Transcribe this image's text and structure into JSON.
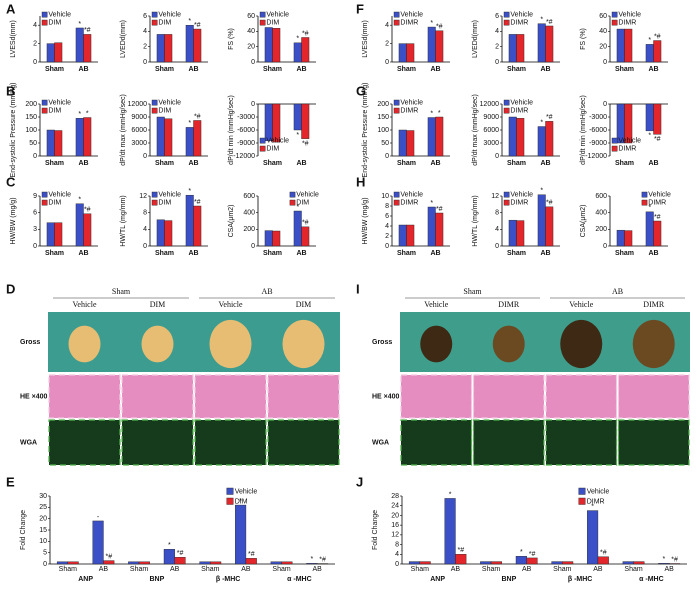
{
  "figure": {
    "panel_labels": [
      "A",
      "B",
      "C",
      "D",
      "E",
      "F",
      "G",
      "H",
      "I",
      "J"
    ],
    "image_panels": [
      {
        "groups": [
          "Sham",
          "AB"
        ],
        "columns": [
          "Vehicle",
          "DIM",
          "Vehicle",
          "DIM"
        ],
        "rows": [
          "Gross",
          "HE ×400",
          "WGA"
        ]
      },
      {
        "groups": [
          "Sham",
          "AB"
        ],
        "columns": [
          "Vehicle",
          "DIMR",
          "Vehicle",
          "DIMR"
        ],
        "rows": [
          "Gross",
          "HE ×400",
          "WGA"
        ]
      }
    ]
  },
  "chart_data": [
    {
      "type": "bar",
      "ylabel": "LVESd(mm)",
      "categories": [
        "Sham",
        "AB"
      ],
      "legend": "upper left",
      "ylim": [
        0,
        5
      ],
      "yticks": [
        0,
        2,
        4
      ],
      "series": [
        {
          "name": "Vehicle",
          "color": "#3b4fc6",
          "values": [
            2.0,
            3.7
          ],
          "significance": [
            null,
            "*"
          ]
        },
        {
          "name": "DIM",
          "color": "#e3262b",
          "values": [
            2.1,
            3.0
          ],
          "significance": [
            null,
            "*#"
          ]
        }
      ]
    },
    {
      "type": "bar",
      "ylabel": "LVEDd(mm)",
      "categories": [
        "Sham",
        "AB"
      ],
      "legend": "upper left",
      "ylim": [
        0,
        6
      ],
      "yticks": [
        0,
        2,
        4,
        6
      ],
      "series": [
        {
          "name": "Vehicle",
          "color": "#3b4fc6",
          "values": [
            3.6,
            4.8
          ],
          "significance": [
            null,
            "*"
          ]
        },
        {
          "name": "DIM",
          "color": "#e3262b",
          "values": [
            3.6,
            4.3
          ],
          "significance": [
            null,
            "*#"
          ]
        }
      ]
    },
    {
      "type": "bar",
      "ylabel": "FS (%)",
      "categories": [
        "Sham",
        "AB"
      ],
      "legend": "upper left",
      "ylim": [
        0,
        60
      ],
      "yticks": [
        0,
        20,
        40,
        60
      ],
      "series": [
        {
          "name": "Vehicle",
          "color": "#3b4fc6",
          "values": [
            45,
            25
          ],
          "significance": [
            null,
            "*"
          ]
        },
        {
          "name": "DIM",
          "color": "#e3262b",
          "values": [
            44,
            32
          ],
          "significance": [
            null,
            "*#"
          ]
        }
      ]
    },
    {
      "type": "bar",
      "ylabel": "End-systolic Pressure (mmHg)",
      "categories": [
        "Sham",
        "AB"
      ],
      "legend": "upper left",
      "ylim": [
        0,
        200
      ],
      "yticks": [
        0,
        50,
        100,
        150,
        200
      ],
      "series": [
        {
          "name": "Vehicle",
          "color": "#3b4fc6",
          "values": [
            100,
            145
          ],
          "significance": [
            null,
            "*"
          ]
        },
        {
          "name": "DIM",
          "color": "#e3262b",
          "values": [
            98,
            148
          ],
          "significance": [
            null,
            "*"
          ]
        }
      ]
    },
    {
      "type": "bar",
      "ylabel": "dP/dt max (mmHg/sec)",
      "categories": [
        "Sham",
        "AB"
      ],
      "legend": "upper left",
      "ylim": [
        0,
        12000
      ],
      "yticks": [
        0,
        3000,
        6000,
        9000,
        12000
      ],
      "series": [
        {
          "name": "Vehicle",
          "color": "#3b4fc6",
          "values": [
            9000,
            6600
          ],
          "significance": [
            null,
            "*"
          ]
        },
        {
          "name": "DIM",
          "color": "#e3262b",
          "values": [
            8600,
            8200
          ],
          "significance": [
            null,
            "*#"
          ]
        }
      ]
    },
    {
      "type": "bar",
      "ylabel": "dP/dt min (mmHg/sec)",
      "categories": [
        "Sham",
        "AB"
      ],
      "legend": "lower left",
      "ylim": [
        -12000,
        0
      ],
      "yticks": [
        -12000,
        -9000,
        -6000,
        -3000,
        0
      ],
      "series": [
        {
          "name": "Vehicle",
          "color": "#3b4fc6",
          "values": [
            -8500,
            -6000
          ],
          "significance": [
            null,
            "*"
          ]
        },
        {
          "name": "DIM",
          "color": "#e3262b",
          "values": [
            -8800,
            -8000
          ],
          "significance": [
            null,
            "*#"
          ]
        }
      ]
    },
    {
      "type": "bar",
      "ylabel": "HW/BW (mg/g)",
      "categories": [
        "Sham",
        "AB"
      ],
      "legend": "upper left",
      "ylim": [
        0,
        9
      ],
      "yticks": [
        0,
        3,
        6,
        9
      ],
      "series": [
        {
          "name": "Vehicle",
          "color": "#3b4fc6",
          "values": [
            4.2,
            7.6
          ],
          "significance": [
            null,
            "*"
          ]
        },
        {
          "name": "DIM",
          "color": "#e3262b",
          "values": [
            4.2,
            5.8
          ],
          "significance": [
            null,
            "*#"
          ]
        }
      ]
    },
    {
      "type": "bar",
      "ylabel": "HW/TL (mg/mm)",
      "categories": [
        "Sham",
        "AB"
      ],
      "legend": "upper left",
      "ylim": [
        0,
        12
      ],
      "yticks": [
        0,
        4,
        8,
        12
      ],
      "series": [
        {
          "name": "Vehicle",
          "color": "#3b4fc6",
          "values": [
            6.3,
            12.2
          ],
          "significance": [
            null,
            "*"
          ]
        },
        {
          "name": "DIM",
          "color": "#e3262b",
          "values": [
            6.1,
            9.6
          ],
          "significance": [
            null,
            "*#"
          ]
        }
      ]
    },
    {
      "type": "bar",
      "ylabel": "CSA(μm2)",
      "categories": [
        "Sham",
        "AB"
      ],
      "legend": "upper right",
      "ylim": [
        0,
        600
      ],
      "yticks": [
        0,
        200,
        400,
        600
      ],
      "series": [
        {
          "name": "Vehicle",
          "color": "#3b4fc6",
          "values": [
            185,
            420
          ],
          "significance": [
            null,
            "*"
          ]
        },
        {
          "name": "DIM",
          "color": "#e3262b",
          "values": [
            180,
            230
          ],
          "significance": [
            null,
            "*#"
          ]
        }
      ]
    },
    {
      "type": "bar",
      "ylabel": "Fold Change",
      "groups": [
        "ANP",
        "BNP",
        "β -MHC",
        "α -MHC"
      ],
      "categories": [
        "Sham",
        "AB",
        "Sham",
        "AB",
        "Sham",
        "AB",
        "Sham",
        "AB"
      ],
      "legend": "upper right",
      "ylim": [
        0,
        30
      ],
      "yticks": [
        0,
        5,
        10,
        15,
        20,
        25,
        30
      ],
      "series": [
        {
          "name": "Vehicle",
          "color": "#3b4fc6",
          "values": [
            1,
            19,
            1,
            6.5,
            1,
            26,
            1,
            0.3
          ],
          "significance": [
            null,
            "-",
            null,
            "*",
            null,
            "*",
            null,
            "*"
          ]
        },
        {
          "name": "DIM",
          "color": "#e3262b",
          "values": [
            1,
            1.5,
            1,
            3,
            1,
            2.5,
            1,
            0.2
          ],
          "significance": [
            null,
            "*#",
            null,
            "*#",
            null,
            "*#",
            null,
            "*#"
          ]
        }
      ]
    },
    {
      "type": "bar",
      "ylabel": "LVESd(mm)",
      "categories": [
        "Sham",
        "AB"
      ],
      "legend": "upper left",
      "ylim": [
        0,
        5
      ],
      "yticks": [
        0,
        2,
        4
      ],
      "series": [
        {
          "name": "Vehicle",
          "color": "#3b4fc6",
          "values": [
            2.0,
            3.8
          ],
          "significance": [
            null,
            "*"
          ]
        },
        {
          "name": "DIMR",
          "color": "#e3262b",
          "values": [
            2.0,
            3.4
          ],
          "significance": [
            null,
            "*#"
          ]
        }
      ]
    },
    {
      "type": "bar",
      "ylabel": "LVEDd(mm)",
      "categories": [
        "Sham",
        "AB"
      ],
      "legend": "upper left",
      "ylim": [
        0,
        6
      ],
      "yticks": [
        0,
        2,
        4,
        6
      ],
      "series": [
        {
          "name": "Vehicle",
          "color": "#3b4fc6",
          "values": [
            3.6,
            5.0
          ],
          "significance": [
            null,
            "*"
          ]
        },
        {
          "name": "DIMR",
          "color": "#e3262b",
          "values": [
            3.6,
            4.7
          ],
          "significance": [
            null,
            "*#"
          ]
        }
      ]
    },
    {
      "type": "bar",
      "ylabel": "FS (%)",
      "categories": [
        "Sham",
        "AB"
      ],
      "legend": "upper left",
      "ylim": [
        0,
        60
      ],
      "yticks": [
        0,
        20,
        40,
        60
      ],
      "series": [
        {
          "name": "Vehicle",
          "color": "#3b4fc6",
          "values": [
            43,
            23
          ],
          "significance": [
            null,
            "*"
          ]
        },
        {
          "name": "DIMR",
          "color": "#e3262b",
          "values": [
            43,
            28
          ],
          "significance": [
            null,
            "*#"
          ]
        }
      ]
    },
    {
      "type": "bar",
      "ylabel": "End-systolic Pressure (mmHg)",
      "categories": [
        "Sham",
        "AB"
      ],
      "legend": "upper left",
      "ylim": [
        0,
        200
      ],
      "yticks": [
        0,
        50,
        100,
        150,
        200
      ],
      "series": [
        {
          "name": "Vehicle",
          "color": "#3b4fc6",
          "values": [
            100,
            148
          ],
          "significance": [
            null,
            "*"
          ]
        },
        {
          "name": "DIMR",
          "color": "#e3262b",
          "values": [
            98,
            150
          ],
          "significance": [
            null,
            "*"
          ]
        }
      ]
    },
    {
      "type": "bar",
      "ylabel": "dP/dt max (mmHg/sec)",
      "categories": [
        "Sham",
        "AB"
      ],
      "legend": "upper left",
      "ylim": [
        0,
        12000
      ],
      "yticks": [
        0,
        3000,
        6000,
        9000,
        12000
      ],
      "series": [
        {
          "name": "Vehicle",
          "color": "#3b4fc6",
          "values": [
            9000,
            6800
          ],
          "significance": [
            null,
            "*"
          ]
        },
        {
          "name": "DIMR",
          "color": "#e3262b",
          "values": [
            8700,
            8000
          ],
          "significance": [
            null,
            "*#"
          ]
        }
      ]
    },
    {
      "type": "bar",
      "ylabel": "dP/dt min (mmHg/sec)",
      "categories": [
        "Sham",
        "AB"
      ],
      "legend": "lower left",
      "ylim": [
        -12000,
        0
      ],
      "yticks": [
        -12000,
        -9000,
        -6000,
        -3000,
        0
      ],
      "series": [
        {
          "name": "Vehicle",
          "color": "#3b4fc6",
          "values": [
            -9000,
            -6200
          ],
          "significance": [
            null,
            "*"
          ]
        },
        {
          "name": "DIMR",
          "color": "#e3262b",
          "values": [
            -9000,
            -7000
          ],
          "significance": [
            null,
            "*#"
          ]
        }
      ]
    },
    {
      "type": "bar",
      "ylabel": "HW/BW (mg/g)",
      "categories": [
        "Sham",
        "AB"
      ],
      "legend": "upper left",
      "ylim": [
        0,
        10
      ],
      "yticks": [
        0,
        2,
        4,
        6,
        8,
        10
      ],
      "series": [
        {
          "name": "Vehicle",
          "color": "#3b4fc6",
          "values": [
            4.2,
            7.8
          ],
          "significance": [
            null,
            "*"
          ]
        },
        {
          "name": "DIMR",
          "color": "#e3262b",
          "values": [
            4.2,
            6.6
          ],
          "significance": [
            null,
            "*#"
          ]
        }
      ]
    },
    {
      "type": "bar",
      "ylabel": "HW/TL (mg/mm)",
      "categories": [
        "Sham",
        "AB"
      ],
      "legend": "upper left",
      "ylim": [
        0,
        12
      ],
      "yticks": [
        0,
        4,
        8,
        12
      ],
      "series": [
        {
          "name": "Vehicle",
          "color": "#3b4fc6",
          "values": [
            6.2,
            12.3
          ],
          "significance": [
            null,
            "*"
          ]
        },
        {
          "name": "DIMR",
          "color": "#e3262b",
          "values": [
            6.1,
            9.4
          ],
          "significance": [
            null,
            "*#"
          ]
        }
      ]
    },
    {
      "type": "bar",
      "ylabel": "CSA(μm2)",
      "categories": [
        "Sham",
        "AB"
      ],
      "legend": "upper right",
      "ylim": [
        0,
        600
      ],
      "yticks": [
        0,
        200,
        400,
        600
      ],
      "series": [
        {
          "name": "Vehicle",
          "color": "#3b4fc6",
          "values": [
            190,
            410
          ],
          "significance": [
            null,
            "*"
          ]
        },
        {
          "name": "DIMR",
          "color": "#e3262b",
          "values": [
            185,
            300
          ],
          "significance": [
            null,
            "*#"
          ]
        }
      ]
    },
    {
      "type": "bar",
      "ylabel": "Fold Change",
      "groups": [
        "ANP",
        "BNP",
        "β -MHC",
        "α -MHC"
      ],
      "categories": [
        "Sham",
        "AB",
        "Sham",
        "AB",
        "Sham",
        "AB",
        "Sham",
        "AB"
      ],
      "legend": "upper right",
      "ylim": [
        0,
        28
      ],
      "yticks": [
        0,
        4,
        8,
        12,
        16,
        20,
        24,
        28
      ],
      "series": [
        {
          "name": "Vehicle",
          "color": "#3b4fc6",
          "values": [
            1,
            27,
            1,
            3.2,
            1,
            22,
            1,
            0.3
          ],
          "significance": [
            null,
            "*",
            null,
            "*",
            null,
            "*",
            null,
            "*"
          ]
        },
        {
          "name": "DIMR",
          "color": "#e3262b",
          "values": [
            1,
            4,
            1,
            2.5,
            1,
            3,
            1,
            0.2
          ],
          "significance": [
            null,
            "*#",
            null,
            "*#",
            null,
            "*#",
            null,
            "*#"
          ]
        }
      ]
    }
  ]
}
